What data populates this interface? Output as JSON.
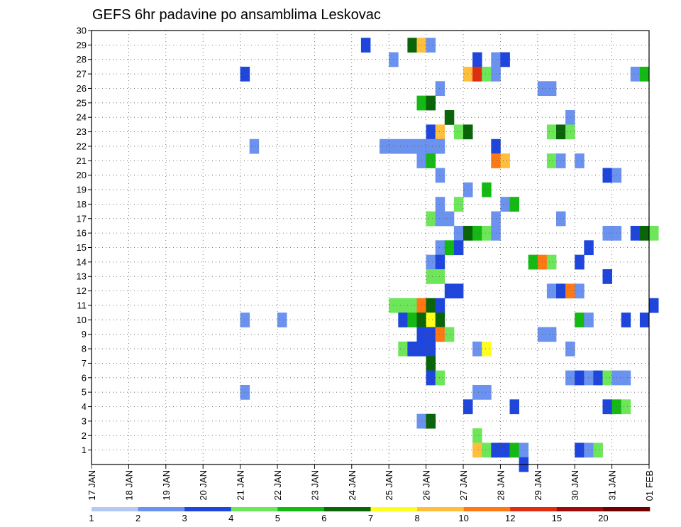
{
  "chart_data": {
    "type": "heatmap",
    "title": "GEFS 6hr padavine po ansamblima Leskovac",
    "xlabel": "",
    "ylabel": "",
    "x_tick_labels": [
      "17 JAN",
      "18 JAN",
      "19 JAN",
      "20 JAN",
      "21 JAN",
      "22 JAN",
      "23 JAN",
      "24 JAN",
      "25 JAN",
      "26 JAN",
      "27 JAN",
      "28 JAN",
      "29 JAN",
      "30 JAN",
      "31 JAN",
      "01 FEB"
    ],
    "y_tick_labels": [
      "1",
      "2",
      "3",
      "4",
      "5",
      "6",
      "7",
      "8",
      "9",
      "10",
      "11",
      "12",
      "13",
      "14",
      "15",
      "16",
      "17",
      "18",
      "19",
      "20",
      "21",
      "22",
      "23",
      "24",
      "25",
      "26",
      "27",
      "28",
      "29",
      "30"
    ],
    "ylim": [
      0,
      30
    ],
    "steps_per_day": 4,
    "grid": true,
    "color_scale": {
      "labels": [
        "1",
        "2",
        "3",
        "4",
        "5",
        "6",
        "7",
        "8",
        "10",
        "12",
        "15",
        "20"
      ],
      "colors": [
        "#b4c8f5",
        "#6a92ee",
        "#1e46dc",
        "#6ee65a",
        "#14b914",
        "#0a640a",
        "#ffff1e",
        "#ffbe3c",
        "#ff7814",
        "#e12d0f",
        "#a00a0a",
        "#6e0000"
      ]
    },
    "cells": [
      [
        29,
        29,
        2
      ],
      [
        29,
        34,
        5
      ],
      [
        29,
        35,
        7
      ],
      [
        29,
        36,
        1
      ],
      [
        28,
        32,
        1
      ],
      [
        28,
        41,
        2
      ],
      [
        28,
        43,
        1
      ],
      [
        28,
        44,
        2
      ],
      [
        27,
        16,
        2
      ],
      [
        27,
        40,
        7
      ],
      [
        27,
        41,
        9
      ],
      [
        27,
        42,
        3
      ],
      [
        27,
        43,
        1
      ],
      [
        27,
        58,
        1
      ],
      [
        27,
        59,
        4
      ],
      [
        26,
        37,
        1
      ],
      [
        26,
        48,
        1
      ],
      [
        26,
        49,
        1
      ],
      [
        25,
        35,
        4
      ],
      [
        25,
        36,
        5
      ],
      [
        24,
        38,
        5
      ],
      [
        24,
        51,
        1
      ],
      [
        23,
        36,
        2
      ],
      [
        23,
        37,
        7
      ],
      [
        23,
        39,
        3
      ],
      [
        23,
        40,
        5
      ],
      [
        23,
        49,
        3
      ],
      [
        23,
        50,
        5
      ],
      [
        23,
        51,
        3
      ],
      [
        22,
        17,
        1
      ],
      [
        22,
        31,
        1
      ],
      [
        22,
        32,
        1
      ],
      [
        22,
        33,
        1
      ],
      [
        22,
        34,
        1
      ],
      [
        22,
        35,
        1
      ],
      [
        22,
        36,
        1
      ],
      [
        22,
        37,
        1
      ],
      [
        22,
        43,
        2
      ],
      [
        21,
        35,
        1
      ],
      [
        21,
        36,
        4
      ],
      [
        21,
        43,
        8
      ],
      [
        21,
        44,
        7
      ],
      [
        21,
        49,
        3
      ],
      [
        21,
        50,
        1
      ],
      [
        21,
        52,
        1
      ],
      [
        20,
        37,
        1
      ],
      [
        20,
        55,
        2
      ],
      [
        20,
        56,
        1
      ],
      [
        19,
        40,
        1
      ],
      [
        19,
        42,
        4
      ],
      [
        18,
        37,
        1
      ],
      [
        18,
        39,
        3
      ],
      [
        18,
        44,
        1
      ],
      [
        18,
        45,
        4
      ],
      [
        17,
        36,
        3
      ],
      [
        17,
        37,
        1
      ],
      [
        17,
        38,
        1
      ],
      [
        17,
        43,
        1
      ],
      [
        17,
        50,
        1
      ],
      [
        16,
        39,
        1
      ],
      [
        16,
        40,
        5
      ],
      [
        16,
        41,
        4
      ],
      [
        16,
        42,
        3
      ],
      [
        16,
        43,
        1
      ],
      [
        16,
        55,
        1
      ],
      [
        16,
        56,
        1
      ],
      [
        16,
        58,
        2
      ],
      [
        16,
        59,
        5
      ],
      [
        16,
        60,
        3
      ],
      [
        15,
        37,
        1
      ],
      [
        15,
        38,
        4
      ],
      [
        15,
        39,
        2
      ],
      [
        15,
        53,
        2
      ],
      [
        14,
        36,
        1
      ],
      [
        14,
        37,
        2
      ],
      [
        14,
        47,
        4
      ],
      [
        14,
        48,
        8
      ],
      [
        14,
        49,
        3
      ],
      [
        14,
        52,
        2
      ],
      [
        13,
        36,
        3
      ],
      [
        13,
        37,
        3
      ],
      [
        13,
        55,
        2
      ],
      [
        12,
        38,
        2
      ],
      [
        12,
        39,
        2
      ],
      [
        12,
        49,
        1
      ],
      [
        12,
        50,
        2
      ],
      [
        12,
        51,
        8
      ],
      [
        12,
        52,
        1
      ],
      [
        11,
        32,
        3
      ],
      [
        11,
        33,
        3
      ],
      [
        11,
        34,
        3
      ],
      [
        11,
        35,
        8
      ],
      [
        11,
        36,
        5
      ],
      [
        11,
        37,
        2
      ],
      [
        11,
        60,
        2
      ],
      [
        10,
        16,
        1
      ],
      [
        10,
        20,
        1
      ],
      [
        10,
        33,
        2
      ],
      [
        10,
        34,
        4
      ],
      [
        10,
        35,
        5
      ],
      [
        10,
        36,
        6
      ],
      [
        10,
        37,
        5
      ],
      [
        10,
        52,
        4
      ],
      [
        10,
        53,
        1
      ],
      [
        10,
        57,
        2
      ],
      [
        10,
        59,
        2
      ],
      [
        9,
        35,
        2
      ],
      [
        9,
        36,
        2
      ],
      [
        9,
        37,
        8
      ],
      [
        9,
        38,
        3
      ],
      [
        9,
        48,
        1
      ],
      [
        9,
        49,
        1
      ],
      [
        8,
        33,
        3
      ],
      [
        8,
        34,
        2
      ],
      [
        8,
        35,
        2
      ],
      [
        8,
        36,
        2
      ],
      [
        8,
        41,
        1
      ],
      [
        8,
        42,
        6
      ],
      [
        8,
        51,
        1
      ],
      [
        7,
        36,
        5
      ],
      [
        6,
        36,
        2
      ],
      [
        6,
        37,
        3
      ],
      [
        6,
        51,
        1
      ],
      [
        6,
        52,
        2
      ],
      [
        6,
        53,
        1
      ],
      [
        6,
        54,
        2
      ],
      [
        6,
        55,
        3
      ],
      [
        6,
        56,
        1
      ],
      [
        6,
        57,
        1
      ],
      [
        5,
        16,
        1
      ],
      [
        5,
        41,
        1
      ],
      [
        5,
        42,
        1
      ],
      [
        4,
        40,
        2
      ],
      [
        4,
        45,
        2
      ],
      [
        4,
        55,
        2
      ],
      [
        4,
        56,
        4
      ],
      [
        4,
        57,
        3
      ],
      [
        3,
        35,
        1
      ],
      [
        3,
        36,
        5
      ],
      [
        2,
        41,
        3
      ],
      [
        1,
        41,
        7
      ],
      [
        1,
        42,
        3
      ],
      [
        1,
        43,
        2
      ],
      [
        1,
        44,
        2
      ],
      [
        1,
        45,
        4
      ],
      [
        1,
        46,
        1
      ],
      [
        1,
        52,
        2
      ],
      [
        1,
        53,
        1
      ],
      [
        1,
        54,
        3
      ],
      [
        0,
        46,
        2
      ]
    ]
  }
}
